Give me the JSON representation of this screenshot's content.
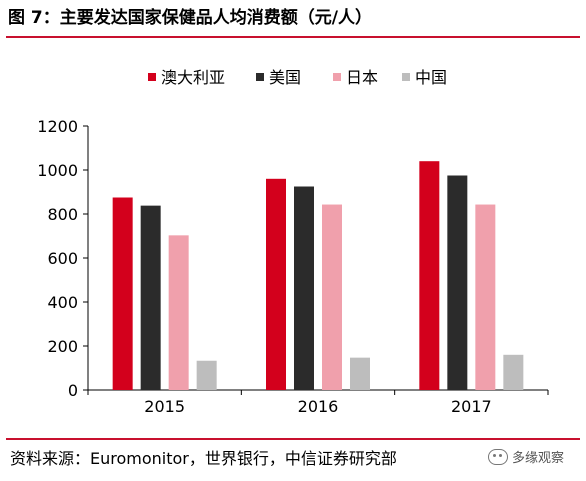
{
  "title": "图 7：主要发达国家保健品人均消费额（元/人）",
  "source": "资料来源：Euromonitor，世界银行，中信证券研究部",
  "watermark": "多缘观察",
  "chart_data": {
    "type": "bar",
    "title": "图 7：主要发达国家保健品人均消费额（元/人）",
    "categories": [
      "2015",
      "2016",
      "2017"
    ],
    "series": [
      {
        "name": "澳大利亚",
        "color": "#d3001c",
        "values": [
          875,
          960,
          1040
        ]
      },
      {
        "name": "美国",
        "color": "#2b2b2b",
        "values": [
          838,
          925,
          975
        ]
      },
      {
        "name": "日本",
        "color": "#f0a0ac",
        "values": [
          703,
          843,
          843
        ]
      },
      {
        "name": "中国",
        "color": "#bdbdbd",
        "values": [
          133,
          147,
          160
        ]
      }
    ],
    "ylim": [
      0,
      1200
    ],
    "yticks": [
      "0",
      "200",
      "400",
      "600",
      "800",
      "1000",
      "1200"
    ],
    "xlabel": "",
    "ylabel": "",
    "grid": false,
    "legend_position": "top"
  }
}
